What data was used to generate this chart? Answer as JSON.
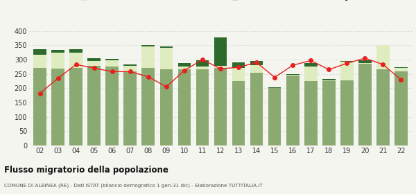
{
  "years": [
    "02",
    "03",
    "04",
    "05",
    "06",
    "07",
    "08",
    "09",
    "10",
    "11",
    "12",
    "13",
    "14",
    "15",
    "16",
    "17",
    "18",
    "19",
    "20",
    "21",
    "22"
  ],
  "iscritti_comuni": [
    272,
    268,
    270,
    278,
    275,
    258,
    270,
    265,
    265,
    265,
    270,
    225,
    255,
    200,
    245,
    225,
    225,
    228,
    285,
    265,
    260
  ],
  "iscritti_estero": [
    45,
    55,
    55,
    18,
    22,
    20,
    75,
    75,
    12,
    12,
    8,
    45,
    25,
    2,
    2,
    50,
    2,
    65,
    2,
    85,
    12
  ],
  "iscritti_altri": [
    20,
    12,
    12,
    8,
    5,
    5,
    5,
    5,
    12,
    20,
    100,
    20,
    15,
    2,
    2,
    12,
    5,
    2,
    10,
    2,
    2
  ],
  "cancellati": [
    182,
    235,
    283,
    270,
    258,
    258,
    240,
    205,
    262,
    300,
    268,
    273,
    290,
    238,
    280,
    297,
    265,
    287,
    305,
    283,
    230
  ],
  "color_comuni": "#8aaa72",
  "color_estero": "#deecc0",
  "color_altri": "#2d6a2d",
  "color_cancellati": "#e82020",
  "color_grid": "#cccccc",
  "title": "Flusso migratorio della popolazione",
  "subtitle": "COMUNE DI ALBINEA (RE) - Dati ISTAT (bilancio demografico 1 gen-31 dic) - Elaborazione TUTTITALIA.IT",
  "ylim": [
    0,
    420
  ],
  "yticks": [
    0,
    50,
    100,
    150,
    200,
    250,
    300,
    350,
    400
  ],
  "bg_color": "#f5f5f0"
}
